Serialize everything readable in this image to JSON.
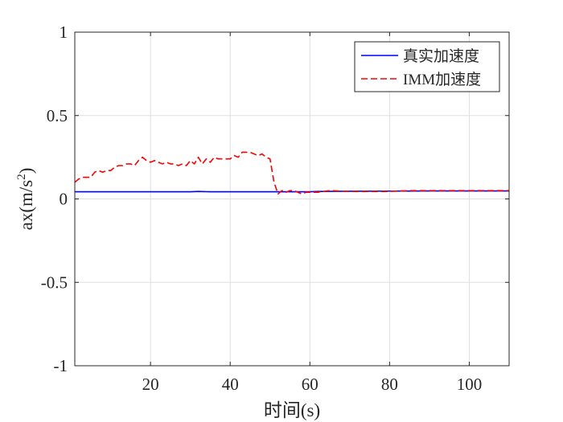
{
  "chart_data": {
    "type": "line",
    "title": "",
    "xlabel": "时间(s)",
    "ylabel": {
      "base": "ax(m/s",
      "sup": "2",
      "close": ")"
    },
    "xlim": [
      1,
      110
    ],
    "ylim": [
      -1,
      1
    ],
    "xticks": [
      20,
      40,
      60,
      80,
      100
    ],
    "yticks": [
      1,
      0.5,
      0,
      -0.5,
      -1
    ],
    "ytick_labels": [
      "1",
      "0.5",
      "0",
      "-0.5",
      "-1"
    ],
    "grid": true,
    "legend_position": "top-right",
    "series": [
      {
        "name": "真实加速度",
        "color": "#0000ff",
        "style": "solid",
        "x": [
          1,
          10,
          20,
          30,
          32,
          35,
          40,
          50,
          60,
          62,
          70,
          80,
          90,
          100,
          110
        ],
        "y": [
          0.043,
          0.043,
          0.043,
          0.043,
          0.045,
          0.043,
          0.043,
          0.043,
          0.043,
          0.045,
          0.046,
          0.047,
          0.048,
          0.048,
          0.048
        ]
      },
      {
        "name": "IMM加速度",
        "color": "#ff0000",
        "style": "dashed",
        "x": [
          1,
          2,
          3,
          5,
          6,
          7,
          8,
          9,
          10,
          11,
          12,
          13,
          14,
          15,
          16,
          17,
          18,
          19,
          20,
          21,
          22,
          23,
          24,
          25,
          26,
          27,
          28,
          29,
          30,
          31,
          32,
          33,
          34,
          35,
          36,
          37,
          38,
          39,
          40,
          41,
          42,
          43,
          44,
          45,
          46,
          47,
          48,
          49,
          50,
          51,
          52,
          53,
          54,
          55,
          56,
          57,
          58,
          59,
          60,
          62,
          65,
          70,
          75,
          80,
          85,
          90,
          95,
          100,
          105,
          110
        ],
        "y": [
          0.1,
          0.12,
          0.13,
          0.13,
          0.16,
          0.17,
          0.16,
          0.17,
          0.17,
          0.19,
          0.2,
          0.2,
          0.21,
          0.21,
          0.2,
          0.23,
          0.25,
          0.23,
          0.22,
          0.23,
          0.22,
          0.21,
          0.22,
          0.21,
          0.21,
          0.2,
          0.21,
          0.2,
          0.23,
          0.21,
          0.25,
          0.21,
          0.24,
          0.22,
          0.25,
          0.24,
          0.24,
          0.24,
          0.24,
          0.26,
          0.25,
          0.28,
          0.28,
          0.28,
          0.27,
          0.26,
          0.27,
          0.25,
          0.24,
          0.1,
          0.03,
          0.05,
          0.04,
          0.05,
          0.05,
          0.04,
          0.03,
          0.04,
          0.04,
          0.04,
          0.05,
          0.045,
          0.045,
          0.045,
          0.05,
          0.05,
          0.05,
          0.05,
          0.05,
          0.05
        ]
      }
    ]
  }
}
